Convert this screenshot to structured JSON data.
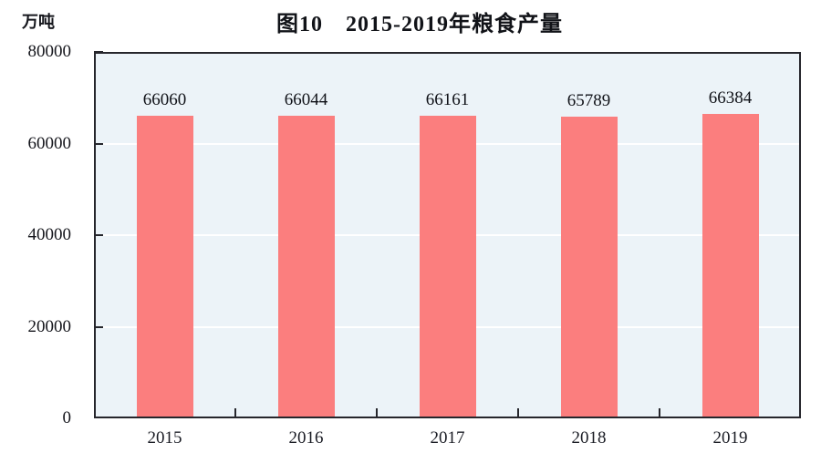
{
  "chart_data": {
    "type": "bar",
    "title": "图10　2015-2019年粮食产量",
    "unit_label": "万吨",
    "categories": [
      "2015",
      "2016",
      "2017",
      "2018",
      "2019"
    ],
    "values": [
      66060,
      66044,
      66161,
      65789,
      66384
    ],
    "value_labels": [
      "66060",
      "66044",
      "66161",
      "65789",
      "66384"
    ],
    "xlabel": "",
    "ylabel": "万吨",
    "ylim": [
      0,
      80000
    ],
    "y_ticks": [
      0,
      20000,
      40000,
      60000,
      80000
    ],
    "y_tick_labels": [
      "0",
      "20000",
      "40000",
      "60000",
      "80000"
    ],
    "legend": "none",
    "grid": "horizontal white lines at interior y ticks, bars drawn on top",
    "colors": {
      "bar": "#fb7e7e",
      "plot_bg": "#ecf3f8",
      "axis": "#26262c",
      "grid": "#ffffff",
      "text": "#15161c",
      "page_bg": "#ffffff"
    }
  }
}
